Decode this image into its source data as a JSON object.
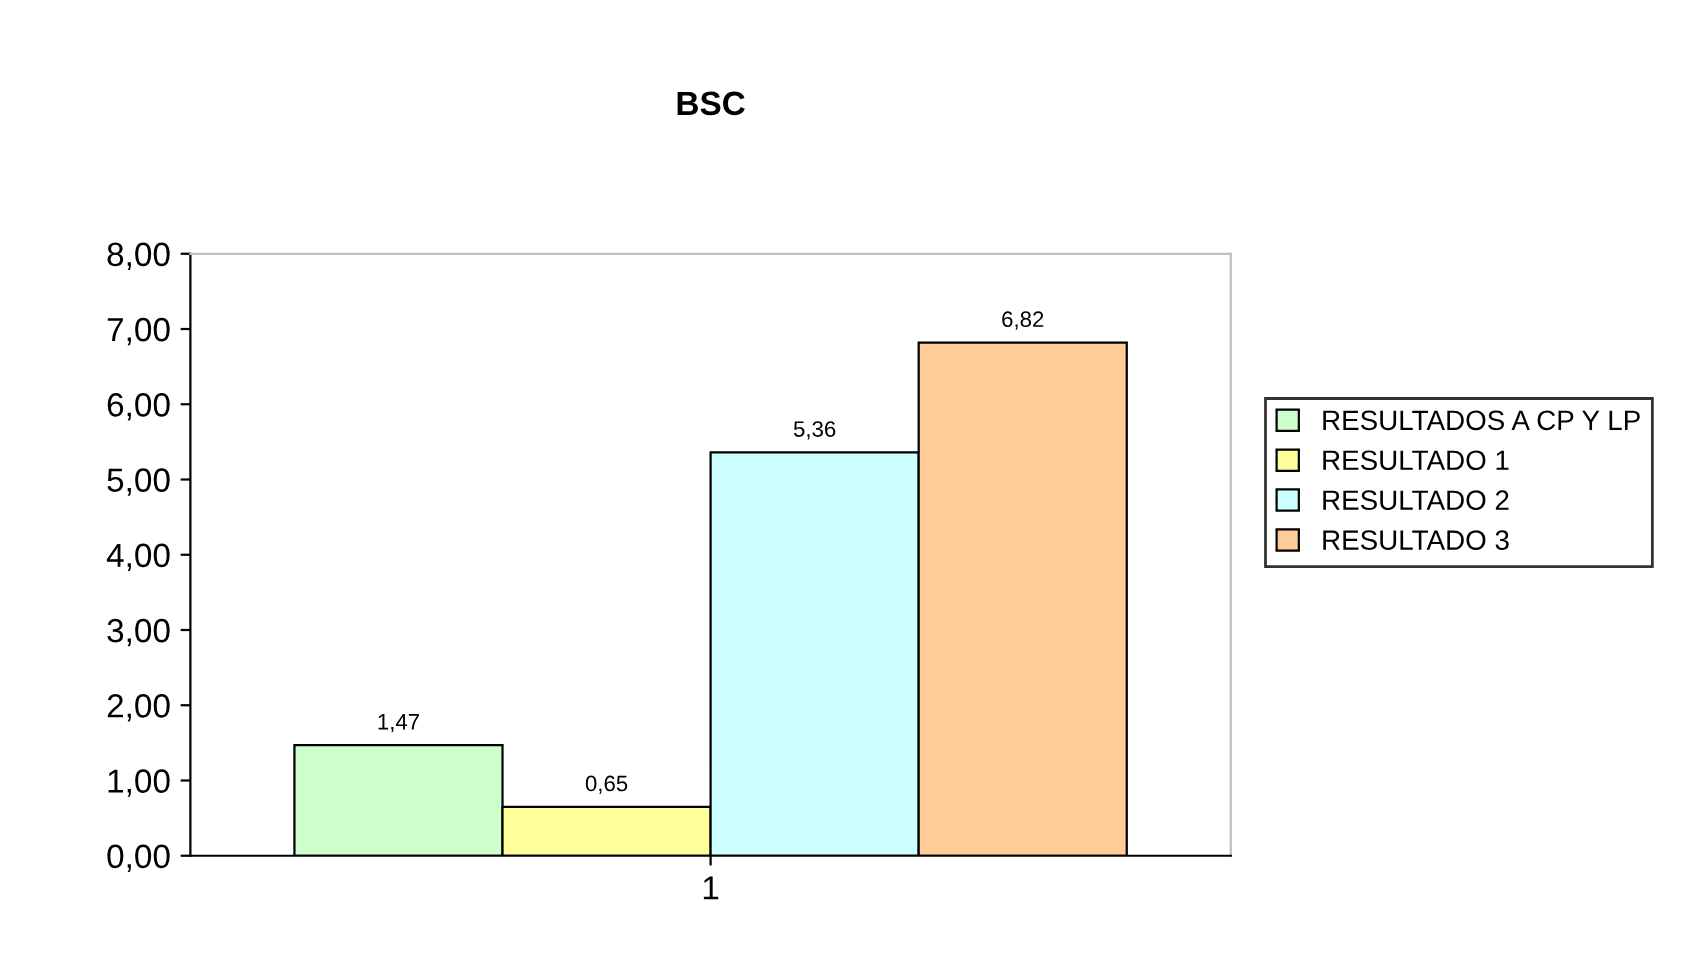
{
  "chart_data": {
    "type": "bar",
    "title": "BSC",
    "categories": [
      "1"
    ],
    "series": [
      {
        "name": "RESULTADOS A CP Y LP",
        "color": "#ccffcc",
        "values": [
          1.47
        ],
        "value_labels": [
          "1,47"
        ]
      },
      {
        "name": "RESULTADO 1",
        "color": "#ffff99",
        "values": [
          0.65
        ],
        "value_labels": [
          "0,65"
        ]
      },
      {
        "name": "RESULTADO 2",
        "color": "#ccffff",
        "values": [
          5.36
        ],
        "value_labels": [
          "5,36"
        ]
      },
      {
        "name": "RESULTADO 3",
        "color": "#ffcc99",
        "values": [
          6.82
        ],
        "value_labels": [
          "6,82"
        ]
      }
    ],
    "ylim": [
      0,
      8
    ],
    "yticks": [
      {
        "value": 0,
        "label": "0,00"
      },
      {
        "value": 1,
        "label": "1,00"
      },
      {
        "value": 2,
        "label": "2,00"
      },
      {
        "value": 3,
        "label": "3,00"
      },
      {
        "value": 4,
        "label": "4,00"
      },
      {
        "value": 5,
        "label": "5,00"
      },
      {
        "value": 6,
        "label": "6,00"
      },
      {
        "value": 7,
        "label": "7,00"
      },
      {
        "value": 8,
        "label": "8,00"
      }
    ],
    "grid": false,
    "legend": "right"
  }
}
